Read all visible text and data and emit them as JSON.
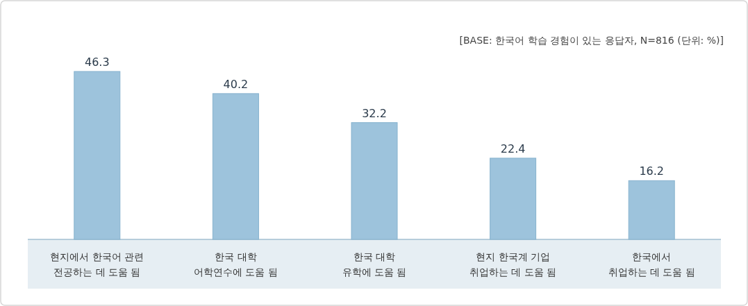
{
  "chart_data": {
    "type": "bar",
    "categories": [
      "현지에서 한국어 관련\n전공하는 데 도움 됨",
      "한국 대학\n어학연수에 도움 됨",
      "한국 대학\n유학에 도움 됨",
      "현지 한국계 기업\n취업하는 데 도움 됨",
      "한국에서\n취업하는 데 도움 됨"
    ],
    "values": [
      46.3,
      40.2,
      32.2,
      22.4,
      16.2
    ],
    "color": "#9dc3dc",
    "data_labels": true,
    "annotations": [
      "[BASE: 한국어 학습 경험이 있는 응답자, N=816 (단위: %)]"
    ]
  }
}
